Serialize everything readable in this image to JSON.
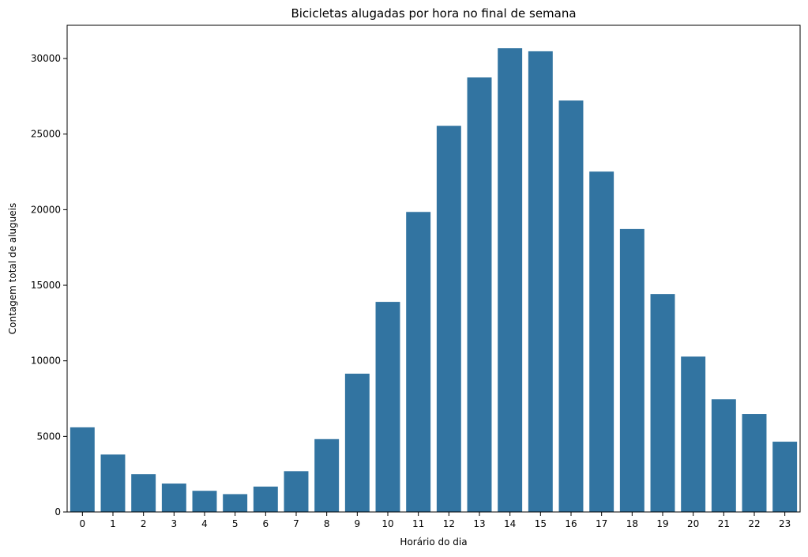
{
  "chart_data": {
    "type": "bar",
    "title": "Bicicletas alugadas por hora no final de semana",
    "xlabel": "Horário do dia",
    "ylabel": "Contagem total de alugueis",
    "categories": [
      "0",
      "1",
      "2",
      "3",
      "4",
      "5",
      "6",
      "7",
      "8",
      "9",
      "10",
      "11",
      "12",
      "13",
      "14",
      "15",
      "16",
      "17",
      "18",
      "19",
      "20",
      "21",
      "22",
      "23"
    ],
    "values": [
      5600,
      3800,
      2500,
      1880,
      1400,
      1180,
      1680,
      2700,
      4820,
      9150,
      13900,
      19850,
      25550,
      28750,
      30680,
      30480,
      27220,
      22520,
      18720,
      14420,
      10280,
      7460,
      6480,
      4650
    ],
    "ylim": [
      0,
      32200
    ],
    "yticks": [
      0,
      5000,
      10000,
      15000,
      20000,
      25000,
      30000
    ],
    "grid": false,
    "colors": {
      "bar": "#3274a1",
      "axis": "#000000",
      "background": "#ffffff"
    }
  }
}
